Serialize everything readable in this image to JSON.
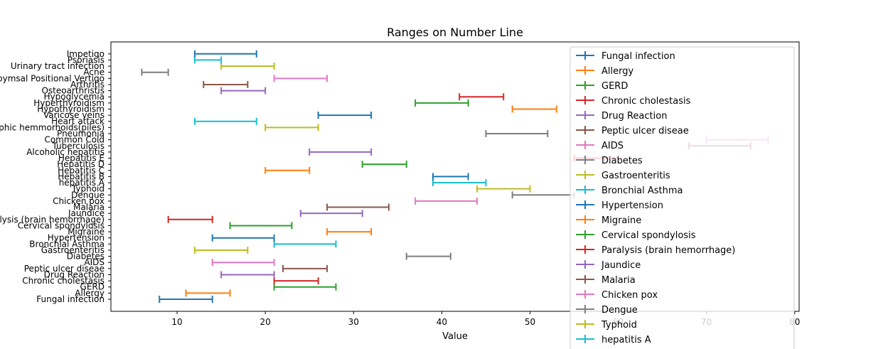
{
  "chart_data": {
    "type": "range",
    "title": "Ranges on Number Line",
    "xlabel": "Value",
    "ylabel": "",
    "xlim": [
      2.5,
      80.5
    ],
    "xticks": [
      10,
      20,
      30,
      40,
      50,
      60,
      70,
      80
    ],
    "grid": false,
    "legend_position": "upper right",
    "colors": [
      "#1f77b4",
      "#ff7f0e",
      "#2ca02c",
      "#d62728",
      "#9467bd",
      "#8c564b",
      "#e377c2",
      "#7f7f7f",
      "#bcbd22",
      "#17becf"
    ],
    "series": [
      {
        "name": "Fungal infection",
        "range": [
          8,
          14
        ]
      },
      {
        "name": "Allergy",
        "range": [
          11,
          16
        ]
      },
      {
        "name": "GERD",
        "range": [
          21,
          28
        ]
      },
      {
        "name": "Chronic cholestasis",
        "range": [
          21,
          26
        ]
      },
      {
        "name": "Drug Reaction",
        "range": [
          15,
          21
        ]
      },
      {
        "name": "Peptic ulcer diseae",
        "range": [
          22,
          27
        ]
      },
      {
        "name": "AIDS",
        "range": [
          14,
          21
        ]
      },
      {
        "name": "Diabetes ",
        "range": [
          36,
          41
        ]
      },
      {
        "name": "Gastroenteritis",
        "range": [
          12,
          18
        ]
      },
      {
        "name": "Bronchial Asthma",
        "range": [
          21,
          28
        ]
      },
      {
        "name": "Hypertension ",
        "range": [
          14,
          21
        ]
      },
      {
        "name": "Migraine",
        "range": [
          27,
          32
        ]
      },
      {
        "name": "Cervical spondylosis",
        "range": [
          16,
          23
        ]
      },
      {
        "name": "Paralysis (brain hemorrhage)",
        "range": [
          9,
          14
        ]
      },
      {
        "name": "Jaundice",
        "range": [
          24,
          31
        ]
      },
      {
        "name": "Malaria",
        "range": [
          27,
          34
        ]
      },
      {
        "name": "Chicken pox",
        "range": [
          37,
          44
        ]
      },
      {
        "name": "Dengue",
        "range": [
          48,
          55
        ]
      },
      {
        "name": "Typhoid",
        "range": [
          44,
          50
        ]
      },
      {
        "name": "hepatitis A",
        "range": [
          39,
          45
        ]
      },
      {
        "name": "Hepatitis B",
        "range": [
          39,
          43
        ]
      },
      {
        "name": "Hepatitis C",
        "range": [
          20,
          25
        ]
      },
      {
        "name": "Hepatitis D",
        "range": [
          31,
          36
        ]
      },
      {
        "name": "Hepatitis E",
        "range": [
          55,
          60
        ]
      },
      {
        "name": "Alcoholic hepatitis",
        "range": [
          25,
          32
        ]
      },
      {
        "name": "Tuberculosis",
        "range": [
          68,
          75
        ]
      },
      {
        "name": "Common Cold",
        "range": [
          70,
          77
        ]
      },
      {
        "name": "Pneumonia",
        "range": [
          45,
          52
        ]
      },
      {
        "name": "Dimorphic hemmorhoids(piles)",
        "range": [
          20,
          26
        ]
      },
      {
        "name": "Heart attack",
        "range": [
          12,
          19
        ]
      },
      {
        "name": "Varicose veins",
        "range": [
          26,
          32
        ]
      },
      {
        "name": "Hypothyroidism",
        "range": [
          48,
          53
        ]
      },
      {
        "name": "Hyperthyroidism",
        "range": [
          37,
          43
        ]
      },
      {
        "name": "Hypoglycemia",
        "range": [
          42,
          47
        ]
      },
      {
        "name": "Osteoarthristis",
        "range": [
          15,
          20
        ]
      },
      {
        "name": "Arthritis",
        "range": [
          13,
          18
        ]
      },
      {
        "name": "(vertigo) Paroymsal  Positional Vertigo",
        "range": [
          21,
          27
        ]
      },
      {
        "name": "Acne",
        "range": [
          6,
          9
        ]
      },
      {
        "name": "Urinary tract infection",
        "range": [
          15,
          21
        ]
      },
      {
        "name": "Psoriasis",
        "range": [
          12,
          15
        ]
      },
      {
        "name": "Impetigo",
        "range": [
          12,
          19
        ]
      }
    ],
    "legend_visible_entries": [
      "Fungal infection",
      "Allergy",
      "GERD",
      "Chronic cholestasis",
      "Drug Reaction",
      "Peptic ulcer diseae",
      "AIDS",
      "Diabetes ",
      "Gastroenteritis",
      "Bronchial Asthma",
      "Hypertension ",
      "Migraine",
      "Cervical spondylosis",
      "Paralysis (brain hemorrhage)",
      "Jaundice",
      "Malaria",
      "Chicken pox",
      "Dengue",
      "Typhoid",
      "hepatitis A"
    ]
  }
}
